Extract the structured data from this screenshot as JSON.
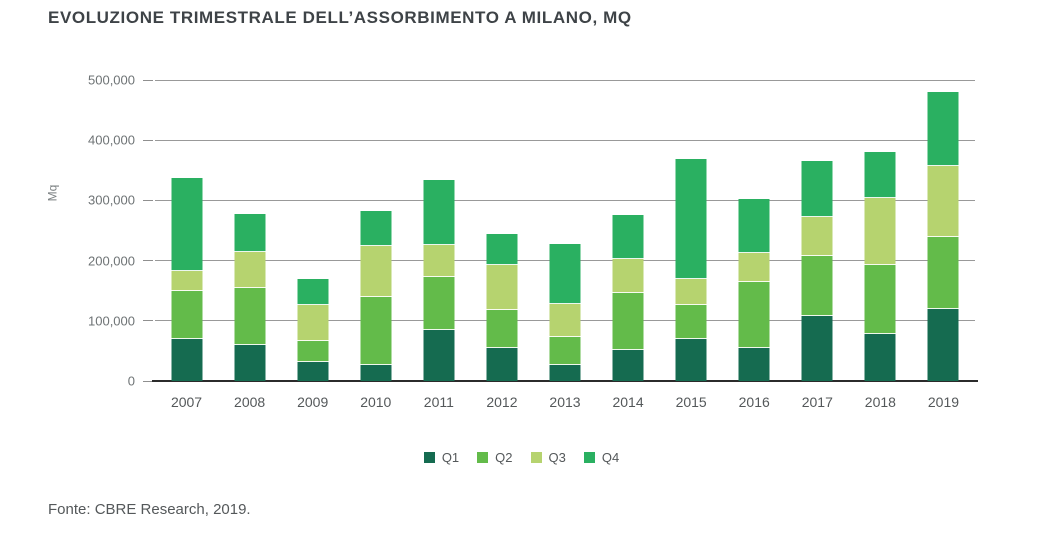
{
  "title": "EVOLUZIONE TRIMESTRALE DELL’ASSORBIMENTO A MILANO, MQ",
  "footer": "Fonte: CBRE Research, 2019.",
  "colors": {
    "title_text": "#3E4347",
    "axis_text": "#6E7375",
    "xlabel_text": "#54585A",
    "gridline": "#999999",
    "axis_line": "#2B2B2B",
    "background": "#FFFFFF"
  },
  "chart_data": {
    "type": "bar",
    "stacked": true,
    "title": "EVOLUZIONE TRIMESTRALE DELL’ASSORBIMENTO A MILANO, MQ",
    "xlabel": "",
    "ylabel": "Mq",
    "ylim": [
      0,
      500000
    ],
    "yticks": [
      0,
      100000,
      200000,
      300000,
      400000,
      500000
    ],
    "ytick_labels": [
      "0",
      "100,000",
      "200,000",
      "300,000",
      "400,000",
      "500,000"
    ],
    "grid": true,
    "legend_position": "bottom",
    "categories": [
      "2007",
      "2008",
      "2009",
      "2010",
      "2011",
      "2012",
      "2013",
      "2014",
      "2015",
      "2016",
      "2017",
      "2018",
      "2019"
    ],
    "series": [
      {
        "name": "Q1",
        "color": "#156B50",
        "values": [
          70000,
          60000,
          31000,
          27000,
          84000,
          55000,
          27000,
          52000,
          70000,
          55000,
          108000,
          78000,
          120000
        ]
      },
      {
        "name": "Q2",
        "color": "#63BB4A",
        "values": [
          80000,
          95000,
          35000,
          112000,
          88000,
          63000,
          46000,
          95000,
          56000,
          110000,
          100000,
          114000,
          120000
        ]
      },
      {
        "name": "Q3",
        "color": "#B6D36F",
        "values": [
          32000,
          60000,
          61000,
          86000,
          54000,
          74000,
          55000,
          55000,
          43000,
          48000,
          65000,
          112000,
          118000
        ]
      },
      {
        "name": "Q4",
        "color": "#2AB061",
        "values": [
          155000,
          62000,
          42000,
          58000,
          108000,
          52000,
          100000,
          74000,
          200000,
          90000,
          93000,
          77000,
          122000
        ]
      }
    ],
    "totals": [
      337000,
      277000,
      169000,
      283000,
      334000,
      244000,
      228000,
      276000,
      369000,
      303000,
      366000,
      381000,
      480000
    ]
  }
}
